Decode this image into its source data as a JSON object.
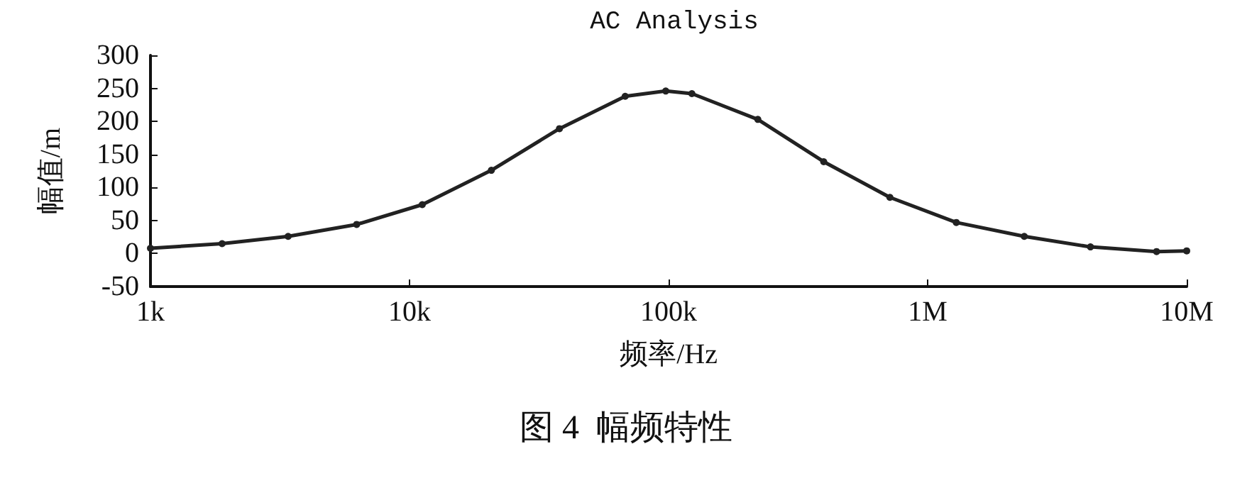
{
  "chart_data": {
    "type": "line",
    "title": "AC Analysis",
    "xlabel": "频率/Hz",
    "ylabel": "幅值/m",
    "annotations": [
      "图 4  幅频特性"
    ],
    "log": "x",
    "grid": false,
    "marker": "circle",
    "line_style": "solid",
    "xlim": [
      1000,
      10000000
    ],
    "xticks": [
      {
        "value": 1000,
        "label": "1k"
      },
      {
        "value": 10000,
        "label": "10k"
      },
      {
        "value": 100000,
        "label": "100k"
      },
      {
        "value": 1000000,
        "label": "1M"
      },
      {
        "value": 10000000,
        "label": "10M"
      }
    ],
    "ylim": [
      -50,
      300
    ],
    "yticks": [
      -50,
      0,
      50,
      100,
      150,
      200,
      250,
      300
    ],
    "series": [
      {
        "color": "#222222",
        "x": [
          1000,
          1890,
          3400,
          6250,
          11200,
          20700,
          37900,
          68000,
          97500,
          123000,
          221000,
          397000,
          715000,
          1290000,
          2360000,
          4250000,
          7650000,
          10000000
        ],
        "values": [
          8,
          15,
          26,
          44,
          74,
          126,
          189,
          238,
          246,
          242,
          203,
          139,
          85,
          47,
          26,
          10,
          3,
          4
        ]
      }
    ]
  }
}
